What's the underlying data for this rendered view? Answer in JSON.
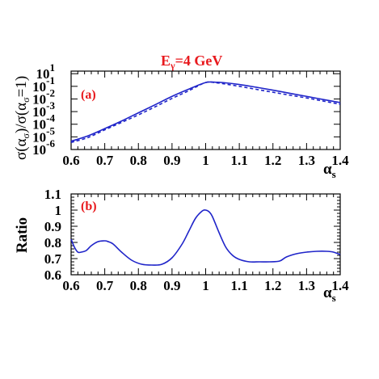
{
  "figure": {
    "title_main": "E",
    "title_sub": "γ",
    "title_rest": "=4 GeV",
    "title_color": "#e8191d",
    "curve_color": "#1f24c9"
  },
  "chart_data": [
    {
      "type": "line",
      "panel_label": "(a)",
      "xlabel_main": "α",
      "xlabel_sub": "s",
      "ylabel": "σ(α_σ)/σ(α_σ=1)",
      "ylabel_parts": [
        "σ(α",
        "σ",
        ")/σ(α",
        "σ",
        "=1)"
      ],
      "xlim": [
        0.6,
        1.4
      ],
      "ylim": [
        1e-06,
        1.6
      ],
      "yscale": "log",
      "xticks": [
        "0.6",
        "0.7",
        "0.8",
        "0.9",
        "1",
        "1.1",
        "1.2",
        "1.3",
        "1.4"
      ],
      "ytick_bases": [
        "10",
        "10",
        "10",
        "10",
        "10",
        "10",
        "10"
      ],
      "ytick_exps": [
        "-6",
        "-5",
        "-4",
        "-3",
        "-2",
        "-1",
        "1"
      ],
      "series": [
        {
          "style": "solid",
          "x": [
            0.6,
            0.65,
            0.7,
            0.75,
            0.8,
            0.85,
            0.9,
            0.95,
            1.0,
            1.03,
            1.05,
            1.1,
            1.15,
            1.2,
            1.25,
            1.3,
            1.35,
            1.4
          ],
          "y": [
            4.5e-06,
            1.2e-05,
            4.5e-05,
            0.00018,
            0.0008,
            0.0035,
            0.016,
            0.06,
            0.2,
            0.21,
            0.2,
            0.14,
            0.085,
            0.05,
            0.028,
            0.016,
            0.009,
            0.0052
          ]
        },
        {
          "style": "dashed",
          "x": [
            0.6,
            0.65,
            0.7,
            0.75,
            0.8,
            0.85,
            0.9,
            0.95,
            1.0,
            1.03,
            1.05,
            1.1,
            1.15,
            1.2,
            1.25,
            1.3,
            1.35,
            1.4
          ],
          "y": [
            3.6e-06,
            8.8e-06,
            3.6e-05,
            0.00014,
            0.00055,
            0.0024,
            0.011,
            0.045,
            0.2,
            0.19,
            0.165,
            0.1,
            0.058,
            0.034,
            0.02,
            0.012,
            0.0068,
            0.0038
          ]
        }
      ]
    },
    {
      "type": "line",
      "panel_label": "(b)",
      "xlabel_main": "α",
      "xlabel_sub": "s",
      "ylabel": "Ratio",
      "xlim": [
        0.6,
        1.4
      ],
      "ylim": [
        0.6,
        1.1
      ],
      "yscale": "linear",
      "xticks": [
        "0.6",
        "0.7",
        "0.8",
        "0.9",
        "1",
        "1.1",
        "1.2",
        "1.3",
        "1.4"
      ],
      "yticks": [
        "0.6",
        "0.7",
        "0.8",
        "0.9",
        "1",
        "1.1"
      ],
      "series": [
        {
          "style": "solid",
          "x": [
            0.6,
            0.61,
            0.62,
            0.63,
            0.645,
            0.66,
            0.68,
            0.7,
            0.71,
            0.725,
            0.75,
            0.78,
            0.81,
            0.84,
            0.87,
            0.9,
            0.93,
            0.95,
            0.97,
            0.99,
            1.0,
            1.01,
            1.02,
            1.04,
            1.06,
            1.08,
            1.1,
            1.13,
            1.16,
            1.19,
            1.22,
            1.24,
            1.27,
            1.3,
            1.33,
            1.36,
            1.38,
            1.4
          ],
          "y": [
            0.82,
            0.77,
            0.74,
            0.74,
            0.75,
            0.78,
            0.805,
            0.81,
            0.805,
            0.79,
            0.74,
            0.69,
            0.665,
            0.66,
            0.665,
            0.705,
            0.79,
            0.87,
            0.95,
            0.995,
            1.0,
            0.99,
            0.96,
            0.86,
            0.77,
            0.72,
            0.695,
            0.68,
            0.68,
            0.68,
            0.685,
            0.71,
            0.73,
            0.74,
            0.745,
            0.745,
            0.74,
            0.725
          ]
        }
      ]
    }
  ]
}
